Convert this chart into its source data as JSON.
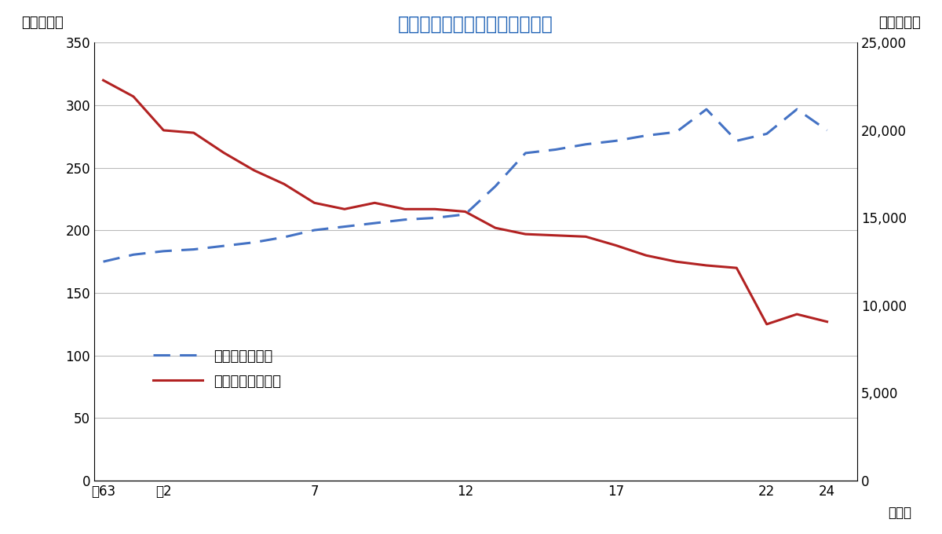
{
  "title": "化成肥料生産量と銘柄数の推移",
  "ylabel_left": "（万トン）",
  "ylabel_right": "（銘柄数）",
  "xlabel": "（年）",
  "x_labels": [
    "昭63",
    "平2",
    "7",
    "12",
    "17",
    "22",
    "24"
  ],
  "x_positions": [
    0,
    2,
    7,
    12,
    17,
    22,
    24
  ],
  "ylim_left": [
    0,
    350
  ],
  "ylim_right": [
    0,
    25000
  ],
  "yticks_left": [
    0,
    50,
    100,
    150,
    200,
    250,
    300,
    350
  ],
  "yticks_right": [
    0,
    5000,
    10000,
    15000,
    20000,
    25000
  ],
  "production": {
    "x": [
      0,
      1,
      2,
      3,
      4,
      5,
      6,
      7,
      8,
      9,
      10,
      11,
      12,
      13,
      14,
      15,
      16,
      17,
      18,
      19,
      20,
      21,
      22,
      23,
      24
    ],
    "y": [
      320,
      307,
      280,
      278,
      262,
      248,
      237,
      222,
      217,
      222,
      217,
      217,
      215,
      202,
      197,
      196,
      195,
      188,
      180,
      175,
      172,
      170,
      125,
      133,
      127
    ],
    "color": "#b22222",
    "linewidth": 2.2,
    "label": "化成肥料生産数量"
  },
  "brand_count": {
    "x": [
      0,
      1,
      2,
      3,
      4,
      5,
      6,
      7,
      8,
      9,
      10,
      11,
      12,
      13,
      14,
      15,
      16,
      17,
      18,
      19,
      20,
      21,
      22,
      23,
      24
    ],
    "y": [
      12500,
      12900,
      13100,
      13200,
      13400,
      13600,
      13900,
      14300,
      14500,
      14700,
      14900,
      15000,
      15200,
      16800,
      18700,
      18900,
      19200,
      19400,
      19700,
      19900,
      21200,
      19400,
      19800,
      21200,
      20000
    ],
    "color": "#4472c4",
    "linewidth": 2.2,
    "label": "登録肥料銘柄数"
  },
  "background_color": "#ffffff",
  "grid_color": "#bbbbbb",
  "title_color": "#1a5fb4",
  "title_fontsize": 17
}
